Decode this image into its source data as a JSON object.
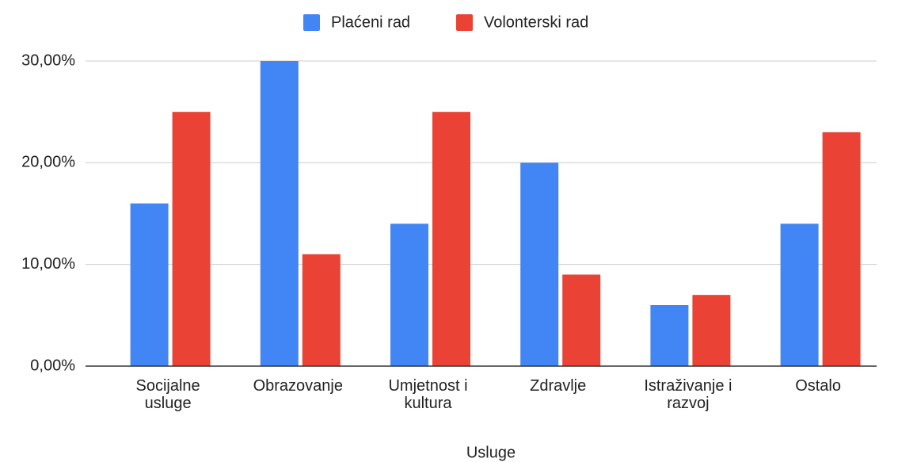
{
  "chart_data": {
    "type": "bar",
    "categories": [
      "Socijalne usluge",
      "Obrazovanje",
      "Umjetnost i kultura",
      "Zdravlje",
      "Istraživanje i razvoj",
      "Ostalo"
    ],
    "series": [
      {
        "name": "Plaćeni rad",
        "color": "#4285f4",
        "values": [
          16,
          30,
          14,
          20,
          6,
          14
        ]
      },
      {
        "name": "Volonterski rad",
        "color": "#ea4335",
        "values": [
          25,
          11,
          25,
          9,
          7,
          23
        ]
      }
    ],
    "x_label": "Usluge",
    "ylim": [
      0,
      30
    ],
    "yticks": [
      {
        "value": 0,
        "label": "0,00%"
      },
      {
        "value": 10,
        "label": "10,00%"
      },
      {
        "value": 20,
        "label": "20,00%"
      },
      {
        "value": 30,
        "label": "30,00%"
      }
    ],
    "grid": true,
    "legend": "top"
  }
}
